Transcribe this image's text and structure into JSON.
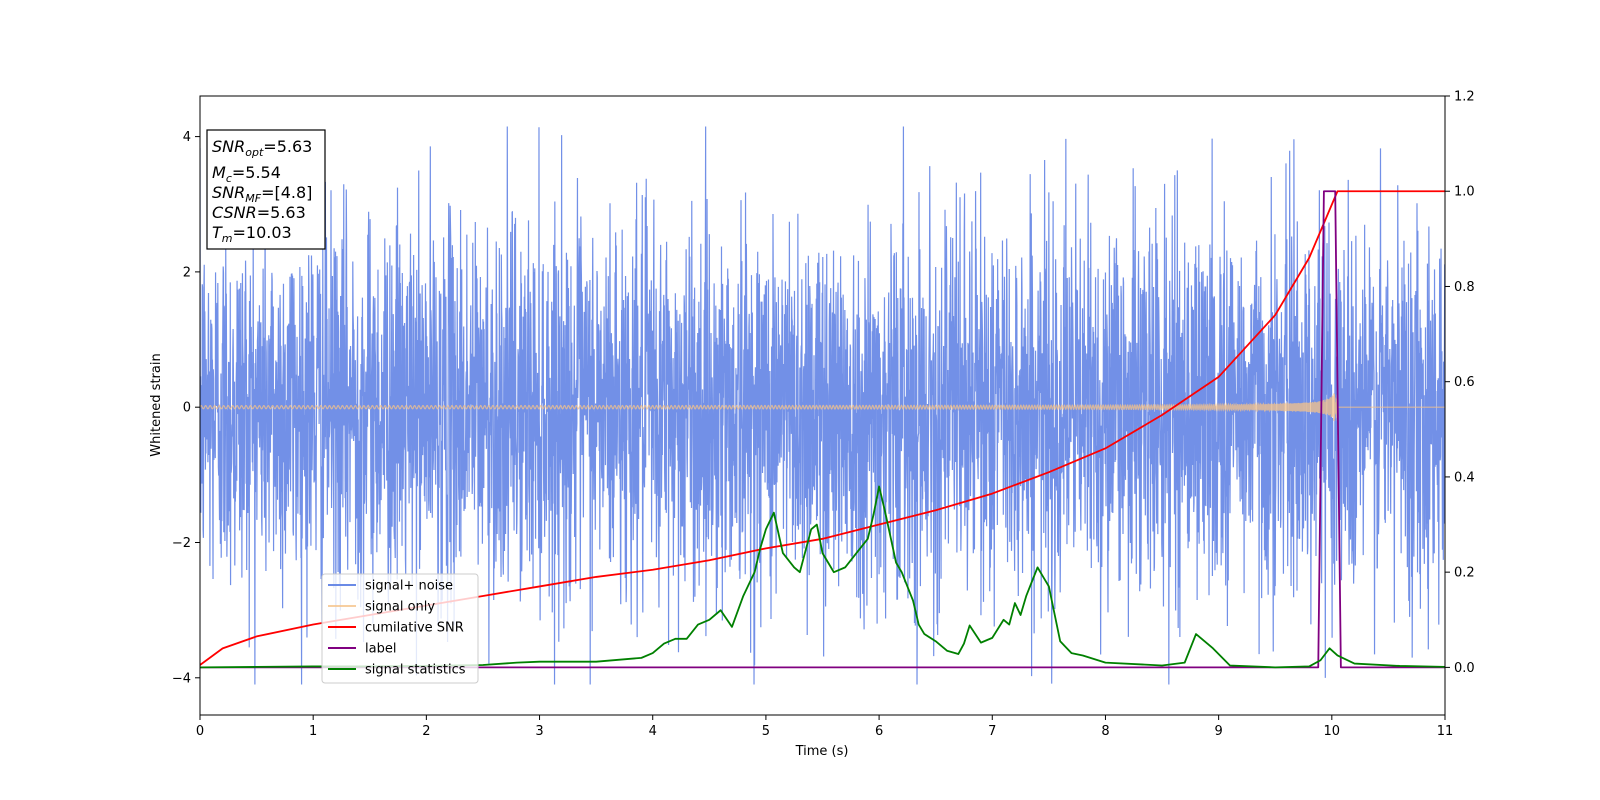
{
  "chart_data": {
    "type": "line",
    "xlabel": "Time (s)",
    "ylabel": "Whitened strain",
    "xlim": [
      0,
      11
    ],
    "ylim": [
      -4.55,
      4.6
    ],
    "y2lim": [
      -0.1,
      1.2
    ],
    "x_ticks": [
      0,
      1,
      2,
      3,
      4,
      5,
      6,
      7,
      8,
      9,
      10,
      11
    ],
    "y_ticks": [
      -4,
      -2,
      0,
      2,
      4
    ],
    "y2_ticks": [
      "0.0",
      "0.2",
      "0.4",
      "0.6",
      "0.8",
      "1.0",
      "1.2"
    ],
    "grid": false,
    "legend_position": "lower-left",
    "info_box": {
      "lines": [
        {
          "base": "SNR",
          "sub": "opt",
          "value": "=5.63"
        },
        {
          "base": "M",
          "sub": "c",
          "value": "=5.54"
        },
        {
          "base": "SNR",
          "sub": "MF",
          "value": "=[4.8]"
        },
        {
          "base": "CSNR",
          "sub": "",
          "value": "=5.63"
        },
        {
          "base": "T",
          "sub": "m",
          "value": "=10.03"
        }
      ]
    },
    "series": [
      {
        "name": "signal+ noise",
        "axis": "left",
        "color": "#6a8ae6",
        "kind": "noise",
        "typical_amplitude": 1.5,
        "peak_max": 4.15,
        "peak_min": -4.1
      },
      {
        "name": "signal only",
        "axis": "left",
        "color": "#f5c38a",
        "kind": "chirp",
        "start_amplitude": 0.02,
        "end_amplitude": 0.42,
        "merger_time": 10.05
      },
      {
        "name": "cumilative SNR",
        "axis": "right",
        "color": "#ff0000",
        "x": [
          0,
          0.2,
          0.5,
          1,
          1.5,
          2,
          2.5,
          3,
          3.5,
          4,
          4.5,
          5,
          5.5,
          6,
          6.5,
          7,
          7.5,
          8,
          8.5,
          9,
          9.5,
          9.8,
          10.05,
          11
        ],
        "y": [
          0.005,
          0.04,
          0.065,
          0.09,
          0.11,
          0.13,
          0.15,
          0.17,
          0.19,
          0.205,
          0.225,
          0.25,
          0.27,
          0.3,
          0.33,
          0.365,
          0.41,
          0.46,
          0.53,
          0.61,
          0.74,
          0.86,
          1.0,
          1.0
        ]
      },
      {
        "name": "label",
        "axis": "right",
        "color": "#800080",
        "x": [
          0,
          9.88,
          9.93,
          10.03,
          10.08,
          11
        ],
        "y": [
          0,
          0,
          1,
          1,
          0,
          0
        ]
      },
      {
        "name": "signal statistics",
        "axis": "right",
        "color": "#008000",
        "x": [
          0,
          0.5,
          1,
          1.5,
          2,
          2.5,
          2.8,
          3,
          3.5,
          3.8,
          3.9,
          4,
          4.1,
          4.2,
          4.3,
          4.4,
          4.5,
          4.6,
          4.7,
          4.8,
          4.9,
          4.95,
          5.0,
          5.07,
          5.15,
          5.25,
          5.3,
          5.4,
          5.45,
          5.5,
          5.55,
          5.6,
          5.7,
          5.8,
          5.9,
          5.95,
          6.0,
          6.05,
          6.15,
          6.2,
          6.3,
          6.35,
          6.4,
          6.5,
          6.6,
          6.7,
          6.75,
          6.8,
          6.9,
          7.0,
          7.1,
          7.15,
          7.2,
          7.25,
          7.3,
          7.4,
          7.45,
          7.5,
          7.6,
          7.7,
          7.8,
          8,
          8.5,
          8.7,
          8.8,
          8.95,
          9.1,
          9.5,
          9.8,
          9.9,
          9.98,
          10.05,
          10.2,
          10.6,
          11
        ],
        "y": [
          0.0,
          0.001,
          0.002,
          0.002,
          0.003,
          0.005,
          0.01,
          0.012,
          0.012,
          0.018,
          0.02,
          0.03,
          0.05,
          0.06,
          0.06,
          0.09,
          0.1,
          0.12,
          0.085,
          0.15,
          0.2,
          0.25,
          0.29,
          0.325,
          0.24,
          0.21,
          0.2,
          0.29,
          0.3,
          0.24,
          0.22,
          0.2,
          0.21,
          0.24,
          0.27,
          0.32,
          0.38,
          0.33,
          0.22,
          0.2,
          0.14,
          0.09,
          0.07,
          0.055,
          0.035,
          0.028,
          0.05,
          0.088,
          0.052,
          0.062,
          0.1,
          0.09,
          0.135,
          0.11,
          0.15,
          0.21,
          0.19,
          0.17,
          0.055,
          0.03,
          0.025,
          0.01,
          0.004,
          0.01,
          0.07,
          0.04,
          0.004,
          0.0,
          0.002,
          0.015,
          0.04,
          0.025,
          0.008,
          0.003,
          0.001
        ]
      }
    ]
  }
}
